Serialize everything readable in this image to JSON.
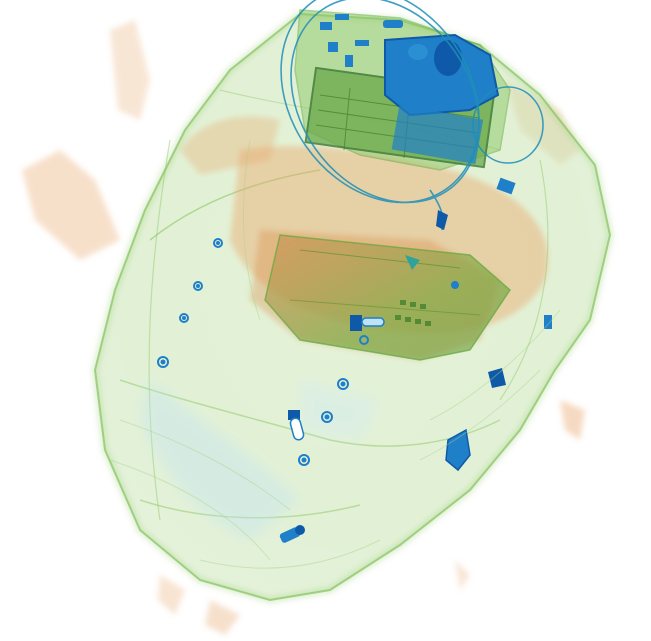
{
  "image": {
    "kind": "x-ray-baggage-scan",
    "background": "#ffffff",
    "palette": {
      "organic_orange": "#e9a86a",
      "organic_orange_dark": "#d98a45",
      "mixed_green": "#8cc866",
      "mixed_green_dark": "#5fa83c",
      "metal_blue": "#1f7fc8",
      "metal_blue_dark": "#0f5aa8",
      "light_blue": "#bfe2f7",
      "teal": "#2fa39a"
    },
    "icons": [
      "bag-outline",
      "laptop-board",
      "battery-pack",
      "cable-loop",
      "zipper-pull",
      "metal-rivet"
    ]
  }
}
